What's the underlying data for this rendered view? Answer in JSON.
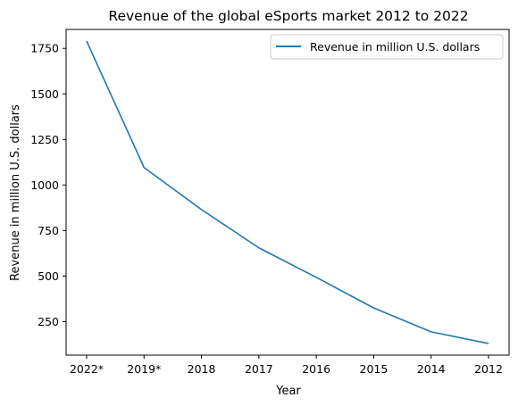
{
  "chart_data": {
    "type": "line",
    "title": "Revenue of the global eSports market 2012 to 2022",
    "xlabel": "Year",
    "ylabel": "Revenue in million U.S. dollars",
    "categories": [
      "2022*",
      "2019*",
      "2018",
      "2017",
      "2016",
      "2015",
      "2014",
      "2012"
    ],
    "series": [
      {
        "name": "Revenue in million U.S. dollars",
        "values": [
          1790,
          1096,
          865,
          655,
          493,
          325,
          194,
          130
        ],
        "color": "#1f77b4"
      }
    ],
    "yticks": [
      250,
      500,
      750,
      1000,
      1250,
      1500,
      1750
    ],
    "ylim": [
      66,
      1854
    ],
    "grid": false,
    "legend_position": "top-right"
  }
}
